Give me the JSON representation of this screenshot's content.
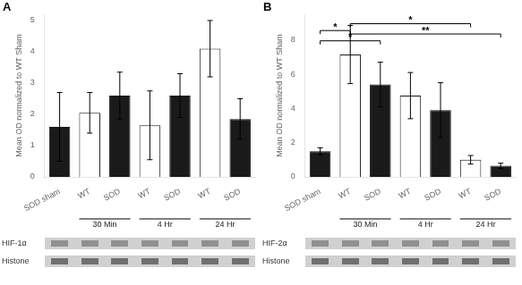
{
  "chart_data": [
    {
      "type": "bar",
      "label": "A",
      "ylabel": "Mean OD normalized to WT Sham",
      "categories": [
        "SOD sham",
        "WT",
        "SOD",
        "WT",
        "SOD",
        "WT",
        "SOD"
      ],
      "values": [
        1.6,
        2.05,
        2.6,
        1.65,
        2.6,
        4.1,
        1.85
      ],
      "errors": [
        1.1,
        0.65,
        0.75,
        1.1,
        0.7,
        0.9,
        0.65
      ],
      "colors": [
        "#1a1a1a",
        "#ffffff",
        "#1a1a1a",
        "#ffffff",
        "#1a1a1a",
        "#ffffff",
        "#1a1a1a"
      ],
      "ylim": [
        0,
        5.2
      ],
      "yticks": [
        0,
        1,
        2,
        3,
        4,
        5
      ],
      "grid": false,
      "groups": [
        {
          "label": "30 Min",
          "from": 1,
          "to": 2
        },
        {
          "label": "4 Hr",
          "from": 3,
          "to": 4
        },
        {
          "label": "24 Hr",
          "from": 5,
          "to": 6
        }
      ],
      "blot_labels": [
        "HIF-1α",
        "Histone"
      ]
    },
    {
      "type": "bar",
      "label": "B",
      "ylabel": "Mean OD normalized to WT Sham",
      "categories": [
        "SOD sham",
        "WT",
        "SOD",
        "WT",
        "SOD",
        "WT",
        "SOD"
      ],
      "values": [
        1.5,
        7.15,
        5.4,
        4.75,
        3.9,
        1.0,
        0.65
      ],
      "errors": [
        0.2,
        1.7,
        1.3,
        1.35,
        1.6,
        0.25,
        0.15
      ],
      "colors": [
        "#1a1a1a",
        "#ffffff",
        "#1a1a1a",
        "#ffffff",
        "#1a1a1a",
        "#ffffff",
        "#1a1a1a"
      ],
      "ylim": [
        0,
        9.5
      ],
      "yticks": [
        0,
        2,
        4,
        6,
        8
      ],
      "grid": false,
      "groups": [
        {
          "label": "30 Min",
          "from": 1,
          "to": 2
        },
        {
          "label": "4 Hr",
          "from": 3,
          "to": 4
        },
        {
          "label": "24 Hr",
          "from": 5,
          "to": 6
        }
      ],
      "brackets": [
        {
          "x1": 0,
          "x2": 1,
          "y": 8.55,
          "text": "*"
        },
        {
          "x1": 0,
          "x2": 2,
          "y": 7.95,
          "text": "*"
        },
        {
          "x1": 1,
          "x2": 5,
          "y": 8.95,
          "text": "*"
        },
        {
          "x1": 1,
          "x2": 6,
          "y": 8.35,
          "text": "**"
        }
      ],
      "blot_labels": [
        "HIF-2α",
        "Histone"
      ]
    }
  ]
}
